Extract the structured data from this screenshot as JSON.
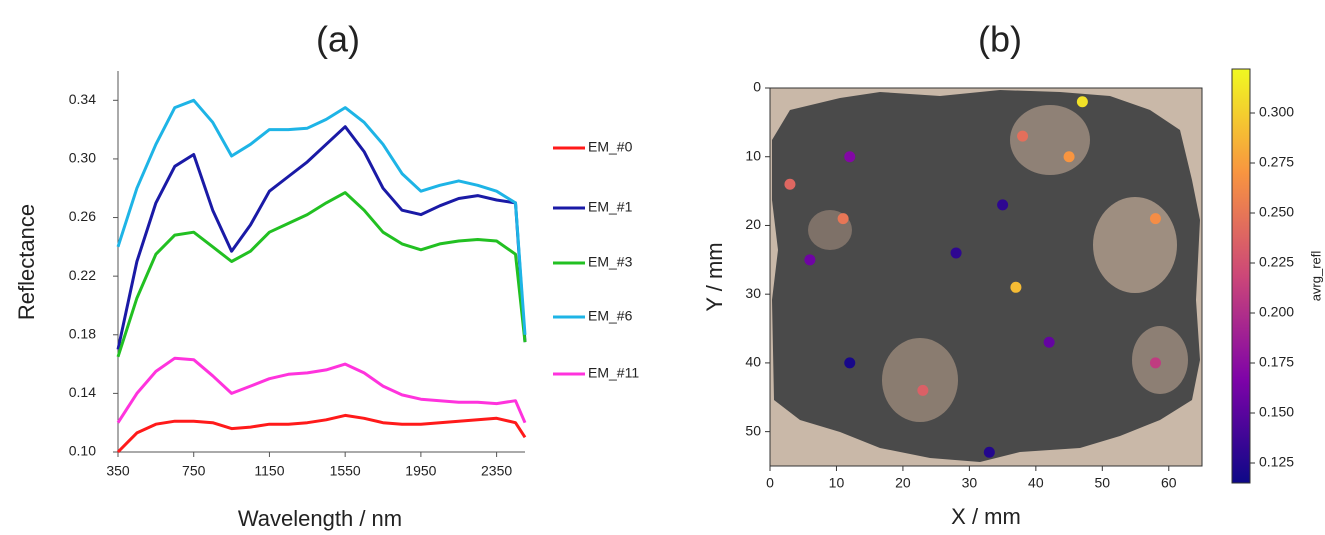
{
  "chart_data": [
    {
      "type": "line",
      "title": "(a)",
      "x_label": "Wavelength / nm",
      "y_label": "Reflectance",
      "x": [
        350,
        450,
        550,
        650,
        750,
        850,
        950,
        1050,
        1150,
        1250,
        1350,
        1450,
        1550,
        1650,
        1750,
        1850,
        1950,
        2050,
        2150,
        2250,
        2350,
        2450,
        2500
      ],
      "series": [
        {
          "name": "EM_#0",
          "color": "#ff1a1a",
          "values": [
            0.1,
            0.113,
            0.119,
            0.121,
            0.121,
            0.12,
            0.116,
            0.117,
            0.119,
            0.119,
            0.12,
            0.122,
            0.125,
            0.123,
            0.12,
            0.119,
            0.119,
            0.12,
            0.121,
            0.122,
            0.123,
            0.12,
            0.11
          ]
        },
        {
          "name": "EM_#1",
          "color": "#1a1aa6",
          "values": [
            0.17,
            0.23,
            0.27,
            0.295,
            0.303,
            0.265,
            0.237,
            0.255,
            0.278,
            0.288,
            0.298,
            0.31,
            0.322,
            0.305,
            0.28,
            0.265,
            0.262,
            0.268,
            0.273,
            0.275,
            0.272,
            0.27,
            0.175
          ]
        },
        {
          "name": "EM_#3",
          "color": "#22c022",
          "values": [
            0.165,
            0.205,
            0.235,
            0.248,
            0.25,
            0.24,
            0.23,
            0.237,
            0.25,
            0.256,
            0.262,
            0.27,
            0.277,
            0.265,
            0.25,
            0.242,
            0.238,
            0.242,
            0.244,
            0.245,
            0.244,
            0.235,
            0.175
          ]
        },
        {
          "name": "EM_#6",
          "color": "#1eb4e6",
          "values": [
            0.24,
            0.28,
            0.31,
            0.335,
            0.34,
            0.325,
            0.302,
            0.31,
            0.32,
            0.32,
            0.321,
            0.327,
            0.335,
            0.325,
            0.31,
            0.29,
            0.278,
            0.282,
            0.285,
            0.282,
            0.278,
            0.27,
            0.18
          ]
        },
        {
          "name": "EM_#11",
          "color": "#ff33dd",
          "values": [
            0.12,
            0.14,
            0.155,
            0.164,
            0.163,
            0.152,
            0.14,
            0.145,
            0.15,
            0.153,
            0.154,
            0.156,
            0.16,
            0.154,
            0.145,
            0.139,
            0.136,
            0.135,
            0.134,
            0.134,
            0.133,
            0.135,
            0.12
          ]
        }
      ],
      "xlim": [
        350,
        2500
      ],
      "xticks": [
        350,
        750,
        1150,
        1550,
        1950,
        2350
      ],
      "ylim": [
        0.1,
        0.36
      ],
      "yticks": [
        {
          "value": 0.1,
          "label": "0.10"
        },
        0.14,
        0.18,
        0.22,
        0.26,
        {
          "value": 0.3,
          "label": "0.30"
        },
        0.34
      ],
      "legend": "right"
    },
    {
      "type": "scatter",
      "title": "(b)",
      "x_label": "X / mm",
      "y_label": "Y / mm",
      "colorbar_label": "avrg_refl",
      "x": [
        47,
        38,
        45,
        12,
        3,
        11,
        35,
        58,
        28,
        6,
        37,
        42,
        58,
        12,
        23,
        33
      ],
      "y": [
        2,
        7,
        10,
        10,
        14,
        19,
        17,
        19,
        24,
        25,
        29,
        37,
        40,
        40,
        44,
        53
      ],
      "values": [
        0.31,
        0.245,
        0.27,
        0.17,
        0.24,
        0.25,
        0.13,
        0.265,
        0.13,
        0.16,
        0.29,
        0.155,
        0.21,
        0.12,
        0.235,
        0.125
      ],
      "colormap": "plasma",
      "clim": [
        0.115,
        0.322
      ],
      "cticks": [
        0.125,
        {
          "value": 0.15,
          "label": "0.150"
        },
        0.175,
        {
          "value": 0.2,
          "label": "0.200"
        },
        0.225,
        {
          "value": 0.25,
          "label": "0.250"
        },
        0.275,
        {
          "value": 0.3,
          "label": "0.300"
        }
      ],
      "xlim": [
        0,
        65
      ],
      "xticks": [
        0,
        10,
        20,
        30,
        40,
        50,
        60
      ],
      "ylim": [
        0,
        55
      ],
      "yticks": [
        0,
        10,
        20,
        30,
        40,
        50
      ],
      "y_inverted": true
    }
  ]
}
